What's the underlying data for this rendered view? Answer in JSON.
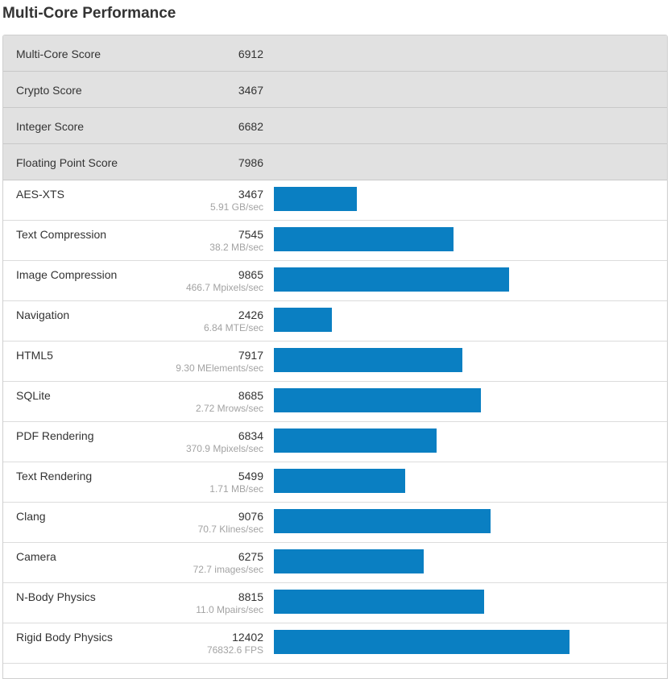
{
  "title": "Multi-Core Performance",
  "colors": {
    "bar": "#0a7fc2",
    "summary_bg": "#e1e1e1",
    "rate_text": "#a3a3a3"
  },
  "summary": [
    {
      "label": "Multi-Core Score",
      "value": "6912"
    },
    {
      "label": "Crypto Score",
      "value": "3467"
    },
    {
      "label": "Integer Score",
      "value": "6682"
    },
    {
      "label": "Floating Point Score",
      "value": "7986"
    }
  ],
  "chart_data": {
    "type": "bar",
    "orientation": "horizontal",
    "title": "Multi-Core Performance",
    "xlim": [
      0,
      12402
    ],
    "categories": [
      "AES-XTS",
      "Text Compression",
      "Image Compression",
      "Navigation",
      "HTML5",
      "SQLite",
      "PDF Rendering",
      "Text Rendering",
      "Clang",
      "Camera",
      "N-Body Physics",
      "Rigid Body Physics"
    ],
    "values": [
      3467,
      7545,
      9865,
      2426,
      7917,
      8685,
      6834,
      5499,
      9076,
      6275,
      8815,
      12402
    ],
    "rates": [
      "5.91 GB/sec",
      "38.2 MB/sec",
      "466.7 Mpixels/sec",
      "6.84 MTE/sec",
      "9.30 MElements/sec",
      "2.72 Mrows/sec",
      "370.9 Mpixels/sec",
      "1.71 MB/sec",
      "70.7 Klines/sec",
      "72.7 images/sec",
      "11.0 Mpairs/sec",
      "76832.6 FPS"
    ]
  }
}
